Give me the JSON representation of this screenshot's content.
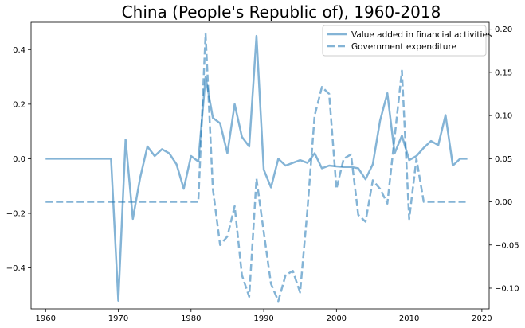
{
  "chart_data": {
    "type": "line",
    "title": "China (People's Republic of), 1960-2018",
    "color": "#1f77b4",
    "legend_position": "top-right",
    "grid": false,
    "x_ticks": [
      1960,
      1970,
      1980,
      1990,
      2000,
      2010,
      2020
    ],
    "xlim": [
      1958,
      2021
    ],
    "y_left": {
      "lim": [
        -0.55,
        0.5
      ],
      "ticks": [
        -0.4,
        -0.2,
        0.0,
        0.2,
        0.4
      ],
      "tick_labels": [
        "−0.4",
        "−0.2",
        "0.0",
        "0.2",
        "0.4"
      ]
    },
    "y_right": {
      "lim": [
        -0.124,
        0.208
      ],
      "ticks": [
        -0.1,
        -0.05,
        0.0,
        0.05,
        0.1,
        0.15,
        0.2
      ],
      "tick_labels": [
        "−0.10",
        "−0.05",
        "0.00",
        "0.05",
        "0.10",
        "0.15",
        "0.20"
      ]
    },
    "series": [
      {
        "name": "Value added in financial activities",
        "axis": "left",
        "style": "solid",
        "x": [
          1960,
          1961,
          1962,
          1963,
          1964,
          1965,
          1966,
          1967,
          1968,
          1969,
          1970,
          1971,
          1972,
          1973,
          1974,
          1975,
          1976,
          1977,
          1978,
          1979,
          1980,
          1981,
          1982,
          1983,
          1984,
          1985,
          1986,
          1987,
          1988,
          1989,
          1990,
          1991,
          1992,
          1993,
          1994,
          1995,
          1996,
          1997,
          1998,
          1999,
          2000,
          2001,
          2002,
          2003,
          2004,
          2005,
          2006,
          2007,
          2008,
          2009,
          2010,
          2011,
          2012,
          2013,
          2014,
          2015,
          2016,
          2017,
          2018
        ],
        "y": [
          0,
          0,
          0,
          0,
          0,
          0,
          0,
          0,
          0,
          0,
          -0.52,
          0.07,
          -0.22,
          -0.07,
          0.045,
          0.01,
          0.035,
          0.02,
          -0.02,
          -0.11,
          0.01,
          -0.01,
          0.3,
          0.15,
          0.13,
          0.02,
          0.2,
          0.08,
          0.045,
          0.45,
          -0.04,
          -0.105,
          0.0,
          -0.025,
          -0.015,
          -0.005,
          -0.015,
          0.02,
          -0.035,
          -0.025,
          -0.028,
          -0.03,
          -0.03,
          -0.035,
          -0.075,
          -0.02,
          0.14,
          0.24,
          0.02,
          0.085,
          -0.005,
          0.01,
          0.04,
          0.065,
          0.05,
          0.16,
          -0.025,
          0.0,
          0.0
        ]
      },
      {
        "name": "Government expenditure",
        "axis": "right",
        "style": "dashed",
        "x": [
          1960,
          1961,
          1962,
          1963,
          1964,
          1965,
          1966,
          1967,
          1968,
          1969,
          1970,
          1971,
          1972,
          1973,
          1974,
          1975,
          1976,
          1977,
          1978,
          1979,
          1980,
          1981,
          1982,
          1983,
          1984,
          1985,
          1986,
          1987,
          1988,
          1989,
          1990,
          1991,
          1992,
          1993,
          1994,
          1995,
          1996,
          1997,
          1998,
          1999,
          2000,
          2001,
          2002,
          2003,
          2004,
          2005,
          2006,
          2007,
          2008,
          2009,
          2010,
          2011,
          2012,
          2013,
          2014,
          2015,
          2016,
          2017,
          2018
        ],
        "y": [
          0,
          0,
          0,
          0,
          0,
          0,
          0,
          0,
          0,
          0,
          0,
          0,
          0,
          0,
          0,
          0,
          0,
          0,
          0,
          0,
          0,
          0,
          0.195,
          0.015,
          -0.05,
          -0.04,
          -0.005,
          -0.085,
          -0.11,
          0.027,
          -0.035,
          -0.095,
          -0.115,
          -0.085,
          -0.08,
          -0.105,
          -0.01,
          0.1,
          0.133,
          0.125,
          0.015,
          0.05,
          0.055,
          -0.015,
          -0.023,
          0.025,
          0.015,
          -0.002,
          0.075,
          0.152,
          -0.02,
          0.05,
          0,
          0,
          0,
          0,
          0,
          0,
          0
        ]
      }
    ]
  }
}
